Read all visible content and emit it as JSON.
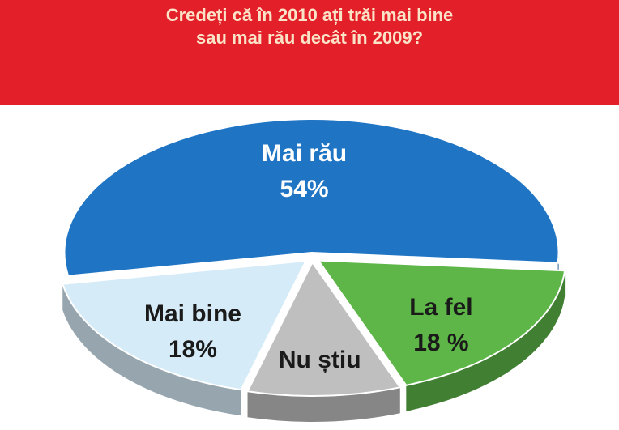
{
  "chart_data": {
    "type": "pie",
    "title": [
      "Credeți că în 2010 ați trăi mai bine",
      "sau mai rău decât în 2009?"
    ],
    "categories": [
      "Mai rău",
      "La fel",
      "Nu știu",
      "Mai bine"
    ],
    "values": [
      54,
      18,
      10,
      18
    ],
    "value_labels": [
      "54%",
      "18 %",
      null,
      "18%"
    ],
    "colors": [
      "#1f74c4",
      "#5db647",
      "#bfbfbf",
      "#d6ebf8"
    ]
  }
}
